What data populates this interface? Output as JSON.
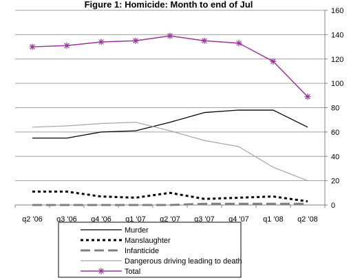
{
  "chart_data": {
    "type": "line",
    "title": "Figure 1: Homicide: Month to end of Jul",
    "categories": [
      "q2 '06",
      "q3 '06",
      "q4 '06",
      "q1 '07",
      "q2 '07",
      "q3 '07",
      "q4 '07",
      "q1 '08",
      "q2 '08"
    ],
    "ylim": [
      0,
      160
    ],
    "yticks": [
      0,
      20,
      40,
      60,
      80,
      100,
      120,
      140,
      160
    ],
    "y_axis_side": "right",
    "grid": true,
    "legend_position": "bottom",
    "series": [
      {
        "name": "Murder",
        "color": "#000000",
        "style": "solid",
        "values": [
          55,
          55,
          60,
          61,
          68,
          76,
          78,
          78,
          64
        ]
      },
      {
        "name": "Manslaughter",
        "color": "#000000",
        "style": "dotted",
        "values": [
          11,
          11,
          7,
          6,
          10,
          5,
          6,
          7,
          3
        ]
      },
      {
        "name": "Infanticide",
        "color": "#808080",
        "style": "dashed",
        "values": [
          0,
          0,
          0,
          0,
          0,
          1,
          1,
          1,
          1
        ]
      },
      {
        "name": "Dangerous driving leading to death",
        "color": "#a6a6a6",
        "style": "solid",
        "values": [
          64,
          65,
          67,
          68,
          61,
          53,
          48,
          31,
          20
        ]
      },
      {
        "name": "Total",
        "color": "#993399",
        "style": "solid-star",
        "values": [
          130,
          131,
          134,
          135,
          139,
          135,
          133,
          118,
          89
        ]
      }
    ]
  }
}
